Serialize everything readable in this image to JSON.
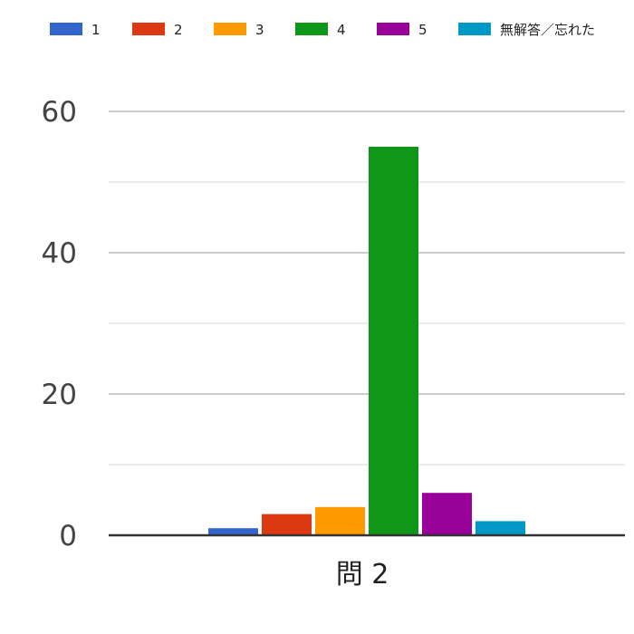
{
  "chart_data": {
    "type": "bar",
    "categories": [
      "問 2"
    ],
    "series": [
      {
        "name": "1",
        "values": [
          1
        ],
        "color": "#3366cc"
      },
      {
        "name": "2",
        "values": [
          3
        ],
        "color": "#dc3912"
      },
      {
        "name": "3",
        "values": [
          4
        ],
        "color": "#ff9900"
      },
      {
        "name": "4",
        "values": [
          55
        ],
        "color": "#109618"
      },
      {
        "name": "5",
        "values": [
          6
        ],
        "color": "#990099"
      },
      {
        "name": "無解答／忘れた",
        "values": [
          2
        ],
        "color": "#0099c6"
      }
    ],
    "ylim": [
      0,
      60
    ],
    "yticks": [
      0,
      20,
      40,
      60
    ],
    "minor_gridlines": [
      10,
      30,
      50
    ],
    "grid": true,
    "legend_position": "top"
  }
}
